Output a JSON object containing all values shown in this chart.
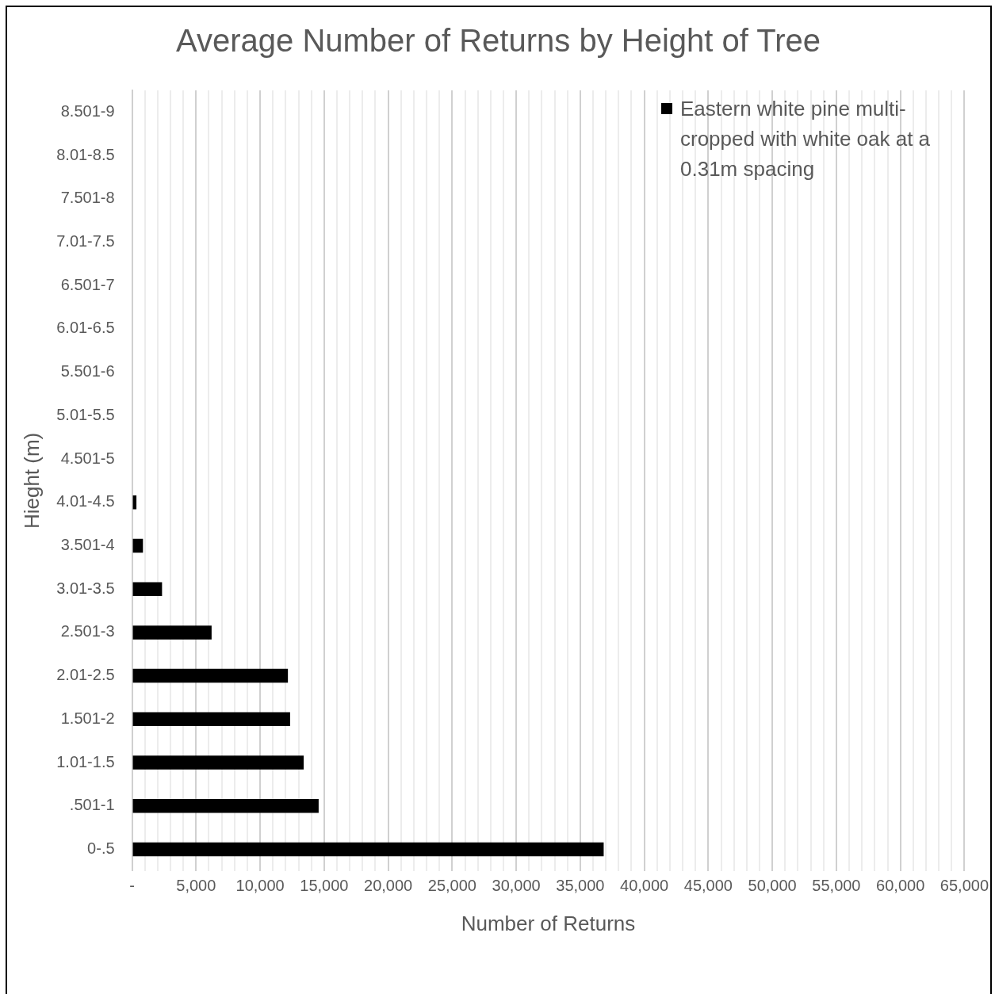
{
  "chart_data": {
    "type": "bar",
    "orientation": "horizontal",
    "title": "Average Number of Returns by Height of Tree",
    "xlabel": "Number of Returns",
    "ylabel": "Hieght (m)",
    "categories": [
      "8.501-9",
      "8.01-8.5",
      "7.501-8",
      "7.01-7.5",
      "6.501-7",
      "6.01-6.5",
      "5.501-6",
      "5.01-5.5",
      "4.501-5",
      "4.01-4.5",
      "3.501-4",
      "3.01-3.5",
      "2.501-3",
      "2.01-2.5",
      "1.501-2",
      "1.01-1.5",
      ".501-1",
      "0-.5"
    ],
    "series": [
      {
        "name": "Eastern white pine multi-cropped with white oak at a 0.31m spacing",
        "color": "#000000",
        "values": [
          0,
          0,
          0,
          0,
          0,
          0,
          0,
          0,
          0,
          340,
          850,
          2340,
          6210,
          12170,
          12340,
          13400,
          14570,
          36830
        ]
      }
    ],
    "xlim": [
      0,
      65000
    ],
    "xticks": [
      {
        "value": 0,
        "label": "-"
      },
      {
        "value": 1000,
        "label": null
      },
      {
        "value": 2000,
        "label": null
      },
      {
        "value": 3000,
        "label": null
      },
      {
        "value": 4000,
        "label": null
      },
      {
        "value": 5000,
        "label": "5,000"
      },
      {
        "value": 6000,
        "label": null
      },
      {
        "value": 7000,
        "label": null
      },
      {
        "value": 8000,
        "label": null
      },
      {
        "value": 9000,
        "label": null
      },
      {
        "value": 10000,
        "label": "10,000"
      },
      {
        "value": 11000,
        "label": null
      },
      {
        "value": 12000,
        "label": null
      },
      {
        "value": 13000,
        "label": null
      },
      {
        "value": 14000,
        "label": null
      },
      {
        "value": 15000,
        "label": "15,000"
      },
      {
        "value": 16000,
        "label": null
      },
      {
        "value": 17000,
        "label": null
      },
      {
        "value": 18000,
        "label": null
      },
      {
        "value": 19000,
        "label": null
      },
      {
        "value": 20000,
        "label": "20,000"
      },
      {
        "value": 21000,
        "label": null
      },
      {
        "value": 22000,
        "label": null
      },
      {
        "value": 23000,
        "label": null
      },
      {
        "value": 24000,
        "label": null
      },
      {
        "value": 25000,
        "label": "25,000"
      },
      {
        "value": 26000,
        "label": null
      },
      {
        "value": 27000,
        "label": null
      },
      {
        "value": 28000,
        "label": null
      },
      {
        "value": 29000,
        "label": null
      },
      {
        "value": 30000,
        "label": "30,000"
      },
      {
        "value": 31000,
        "label": null
      },
      {
        "value": 32000,
        "label": null
      },
      {
        "value": 33000,
        "label": null
      },
      {
        "value": 34000,
        "label": null
      },
      {
        "value": 35000,
        "label": "35,000"
      },
      {
        "value": 36000,
        "label": null
      },
      {
        "value": 37000,
        "label": null
      },
      {
        "value": 38000,
        "label": null
      },
      {
        "value": 39000,
        "label": null
      },
      {
        "value": 40000,
        "label": "40,000"
      },
      {
        "value": 41000,
        "label": null
      },
      {
        "value": 42000,
        "label": null
      },
      {
        "value": 43000,
        "label": null
      },
      {
        "value": 44000,
        "label": null
      },
      {
        "value": 45000,
        "label": "45,000"
      },
      {
        "value": 46000,
        "label": null
      },
      {
        "value": 47000,
        "label": null
      },
      {
        "value": 48000,
        "label": null
      },
      {
        "value": 49000,
        "label": null
      },
      {
        "value": 50000,
        "label": "50,000"
      },
      {
        "value": 51000,
        "label": null
      },
      {
        "value": 52000,
        "label": null
      },
      {
        "value": 53000,
        "label": null
      },
      {
        "value": 54000,
        "label": null
      },
      {
        "value": 55000,
        "label": "55,000"
      },
      {
        "value": 56000,
        "label": null
      },
      {
        "value": 57000,
        "label": null
      },
      {
        "value": 58000,
        "label": null
      },
      {
        "value": 59000,
        "label": null
      },
      {
        "value": 60000,
        "label": "60,000"
      },
      {
        "value": 61000,
        "label": null
      },
      {
        "value": 62000,
        "label": null
      },
      {
        "value": 63000,
        "label": null
      },
      {
        "value": 64000,
        "label": null
      },
      {
        "value": 65000,
        "label": "65,000"
      }
    ],
    "grid": "x",
    "legend": "top right"
  }
}
